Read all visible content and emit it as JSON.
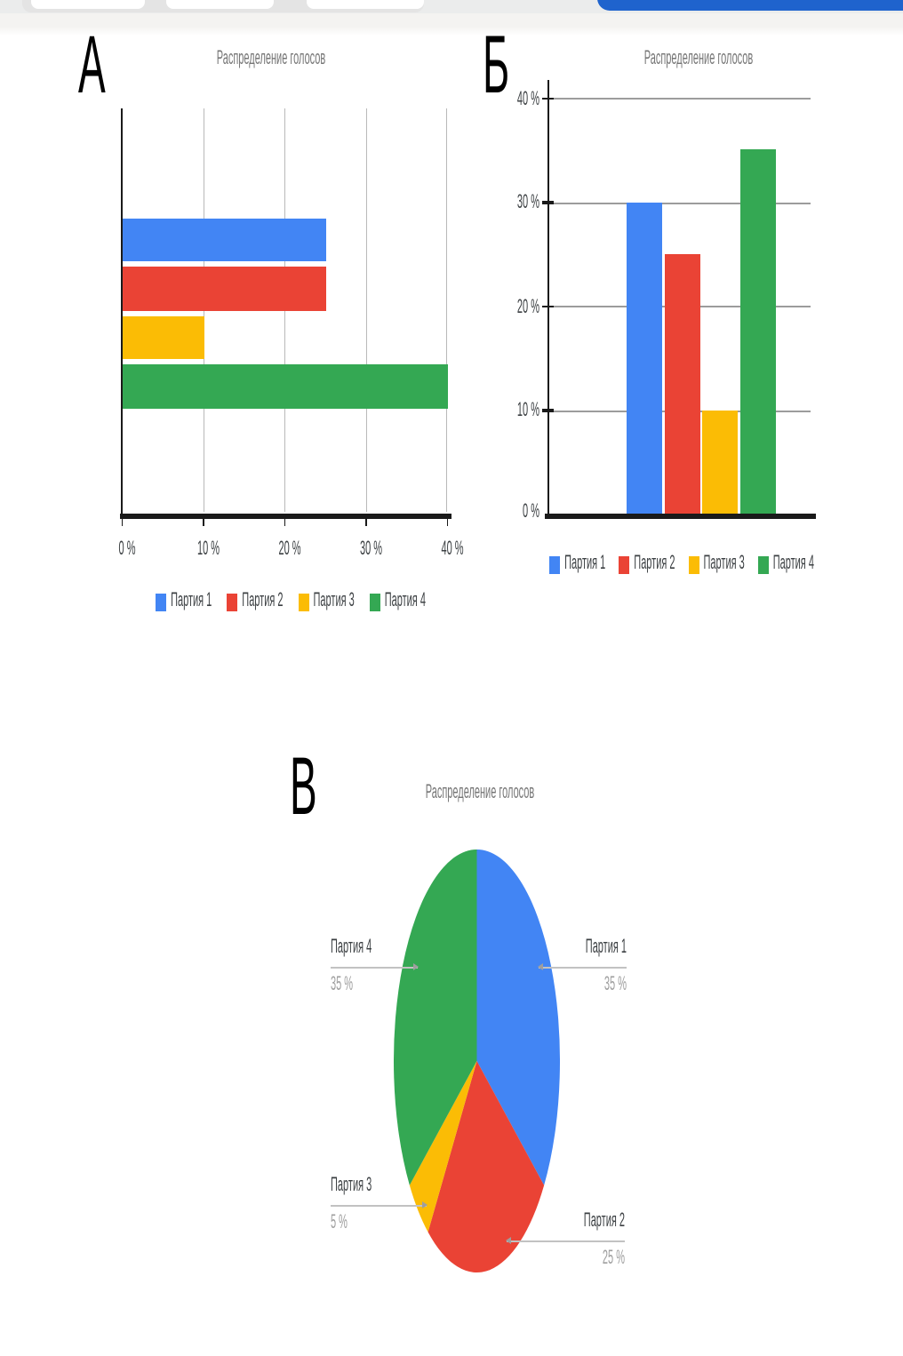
{
  "page": {
    "background": "#ffffff"
  },
  "toolbar": {
    "background": "#ebecec",
    "pill_color": "#ffffff",
    "primary_button_color": "#1f63cd"
  },
  "chart_data": [
    {
      "type": "bar",
      "orientation": "horizontal",
      "panel_label": "А",
      "title": "Распределение голосов",
      "categories": [
        "Партия 1",
        "Партия 2",
        "Партия 3",
        "Партия 4"
      ],
      "values": [
        25,
        25,
        10,
        40
      ],
      "colors": [
        "#4285f4",
        "#ea4335",
        "#fbbc05",
        "#34a853"
      ],
      "xticks": [
        "0 %",
        "10 %",
        "20 %",
        "30 %",
        "40 %"
      ],
      "xlim": [
        0,
        40
      ],
      "grid": true,
      "legend_position": "bottom"
    },
    {
      "type": "bar",
      "orientation": "vertical",
      "panel_label": "Б",
      "title": "Распределение голосов",
      "categories": [
        "Партия 1",
        "Партия 2",
        "Партия 3",
        "Партия 4"
      ],
      "values": [
        30,
        25,
        10,
        35
      ],
      "colors": [
        "#4285f4",
        "#ea4335",
        "#fbbc05",
        "#34a853"
      ],
      "yticks": [
        "40 %",
        "30 %",
        "20 %",
        "10 %",
        "0 %"
      ],
      "ylim": [
        0,
        41.7
      ],
      "grid": true,
      "legend_position": "bottom"
    },
    {
      "type": "pie",
      "panel_label": "В",
      "title": "Распределение голосов",
      "labels": [
        "Партия 1",
        "Партия 2",
        "Партия 3",
        "Партия 4"
      ],
      "values": [
        35,
        25,
        5,
        35
      ],
      "value_labels": [
        "35 %",
        "25 %",
        "5 %",
        "35 %"
      ],
      "colors": [
        "#4285f4",
        "#ea4335",
        "#fbbc05",
        "#34a853"
      ],
      "start_angle": 0,
      "direction": "clockwise"
    }
  ]
}
